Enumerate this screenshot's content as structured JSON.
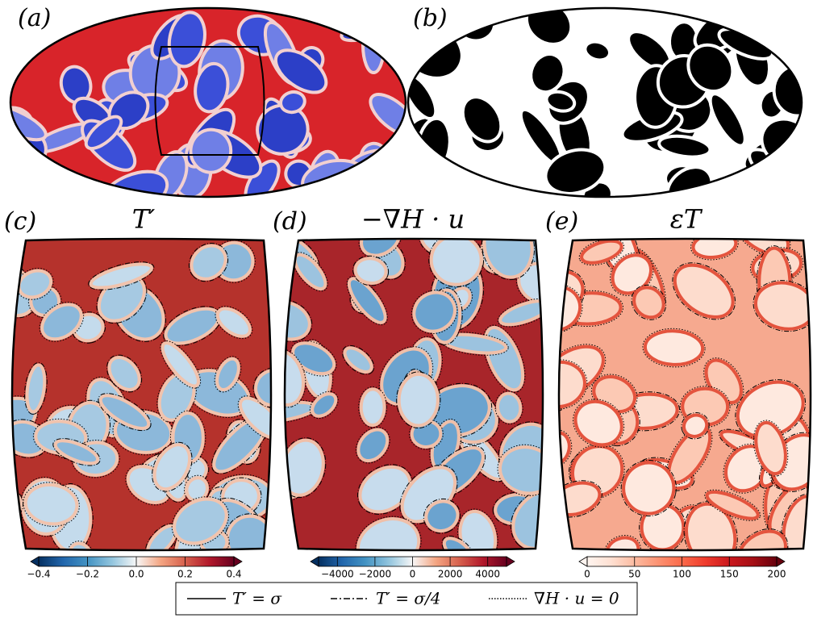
{
  "panels": [
    {
      "label": "(a)"
    },
    {
      "label": "(b)"
    },
    {
      "label": "(c)",
      "title": "T′"
    },
    {
      "label": "(d)",
      "title": "−∇H · u"
    },
    {
      "label": "(e)",
      "title": "εT"
    }
  ],
  "colorbars": [
    {
      "lim": [
        -0.4,
        0.4
      ],
      "ticks": [
        {
          "value": -0.4,
          "label": "−0.4"
        },
        {
          "value": -0.2,
          "label": "−0.2"
        },
        {
          "value": 0,
          "label": "0.0"
        },
        0.2,
        0.4
      ],
      "colormap": [
        "#053061",
        "#2166ac",
        "#4393c3",
        "#92c5de",
        "#f7f7f7",
        "#f4a582",
        "#d6604d",
        "#b2182b",
        "#67001f"
      ]
    },
    {
      "lim": [
        -5000,
        5000
      ],
      "ticks": [
        {
          "value": -4000,
          "label": "−4000"
        },
        {
          "value": -2000,
          "label": "−2000"
        },
        0,
        2000,
        4000
      ],
      "colormap": [
        "#053061",
        "#2166ac",
        "#4393c3",
        "#92c5de",
        "#f7f7f7",
        "#f4a582",
        "#d6604d",
        "#b2182b",
        "#67001f"
      ]
    },
    {
      "lim": [
        0,
        200
      ],
      "ticks": [
        0,
        50,
        100,
        150,
        200
      ],
      "colormap": [
        "#fff5f0",
        "#fee0d2",
        "#fcbba1",
        "#fc9272",
        "#fb6a4a",
        "#ef3b2c",
        "#cb181d",
        "#a50f15",
        "#67000d"
      ]
    }
  ],
  "legend": [
    {
      "label": "T′ = σ",
      "style": "solid"
    },
    {
      "label": "T′ = σ/4",
      "style": "dashdot"
    },
    {
      "label": "∇H · u = 0",
      "style": "dotted"
    }
  ]
}
